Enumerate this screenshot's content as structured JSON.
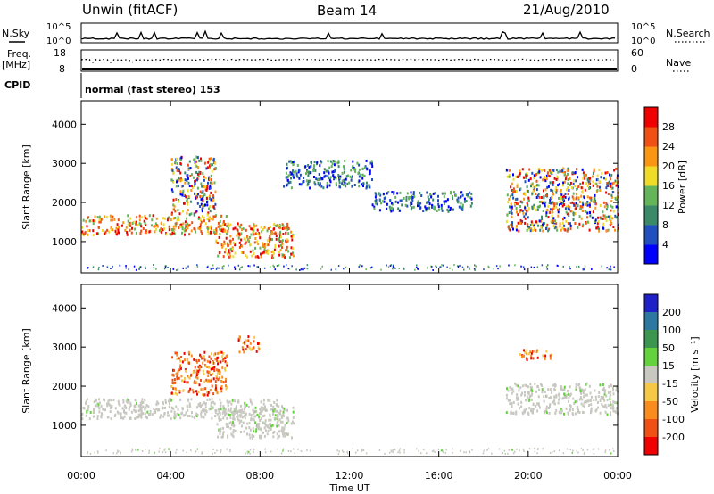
{
  "header": {
    "station": "Unwin (fitACF)",
    "beam": "Beam 14",
    "date": "21/Aug/2010"
  },
  "summary_panels": {
    "nsky_label": "N.Sky",
    "nsky_ticks": [
      "10^5",
      "10^0"
    ],
    "nsearch_label": "N.Search",
    "nsearch_ticks": [
      "10^5",
      "10^0"
    ],
    "freq_label": "Freq.",
    "freq_unit": "[MHz]",
    "freq_ticks": [
      "18",
      "8"
    ],
    "nave_label": "Nave",
    "nave_ticks": [
      "60",
      "0"
    ],
    "cpid_label": "CPID",
    "cpid_text": "normal (fast stereo) 153"
  },
  "colors": {
    "power": [
      "#0000ff",
      "#2050c0",
      "#3a8a6a",
      "#64b45a",
      "#f0dc28",
      "#fa9614",
      "#f05014",
      "#f00000"
    ],
    "velocity": [
      "#2020c8",
      "#2d78a0",
      "#3c9650",
      "#64d23c",
      "#c8c8c0",
      "#f5c846",
      "#fa8c1e",
      "#f05014",
      "#f00000"
    ],
    "ground_scatter": "#c8c8c0"
  },
  "chart_data": [
    {
      "type": "heatmap",
      "name": "power",
      "ylabel": "Slant Range [km]",
      "yticks": [
        1000,
        2000,
        3000,
        4000
      ],
      "ylim": [
        200,
        4600
      ],
      "xlim": [
        0,
        24
      ],
      "colorbar_label": "Power [dB]",
      "colorbar_ticks": [
        4,
        8,
        12,
        16,
        20,
        24,
        28
      ],
      "colorbar_range": [
        0,
        32
      ],
      "scatter_regions": [
        {
          "t": [
            0,
            6.5
          ],
          "r": [
            1200,
            1700
          ],
          "level": "high"
        },
        {
          "t": [
            4,
            6
          ],
          "r": [
            1700,
            3200
          ],
          "level": "mixed"
        },
        {
          "t": [
            6,
            9.5
          ],
          "r": [
            600,
            1500
          ],
          "level": "high"
        },
        {
          "t": [
            9,
            13
          ],
          "r": [
            2400,
            3100
          ],
          "level": "low"
        },
        {
          "t": [
            13,
            17.5
          ],
          "r": [
            1800,
            2300
          ],
          "level": "low"
        },
        {
          "t": [
            19,
            24
          ],
          "r": [
            1300,
            2900
          ],
          "level": "mixed"
        }
      ]
    },
    {
      "type": "heatmap",
      "name": "velocity",
      "ylabel": "Slant Range [km]",
      "xlabel": "Time UT",
      "yticks": [
        1000,
        2000,
        3000,
        4000
      ],
      "ylim": [
        200,
        4600
      ],
      "xlim": [
        0,
        24
      ],
      "xticks": [
        "00:00",
        "04:00",
        "08:00",
        "12:00",
        "16:00",
        "20:00",
        "00:00"
      ],
      "colorbar_label": "Velocity [m s⁻¹]",
      "colorbar_ticks": [
        200,
        100,
        50,
        15,
        -15,
        -50,
        -100,
        -200
      ],
      "scatter_regions": [
        {
          "t": [
            0,
            9
          ],
          "r": [
            1200,
            1700
          ],
          "level": "ground"
        },
        {
          "t": [
            4,
            6.5
          ],
          "r": [
            1800,
            2900
          ],
          "level": "negative"
        },
        {
          "t": [
            6,
            9.5
          ],
          "r": [
            700,
            1500
          ],
          "level": "ground"
        },
        {
          "t": [
            7,
            8
          ],
          "r": [
            2900,
            3300
          ],
          "level": "negative"
        },
        {
          "t": [
            19,
            24
          ],
          "r": [
            1300,
            2100
          ],
          "level": "ground"
        },
        {
          "t": [
            19.5,
            21
          ],
          "r": [
            2700,
            2950
          ],
          "level": "negative"
        }
      ]
    }
  ]
}
